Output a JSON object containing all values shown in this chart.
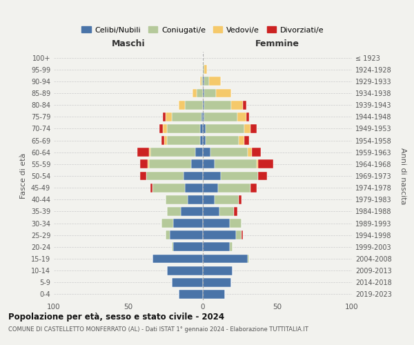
{
  "age_groups": [
    "0-4",
    "5-9",
    "10-14",
    "15-19",
    "20-24",
    "25-29",
    "30-34",
    "35-39",
    "40-44",
    "45-49",
    "50-54",
    "55-59",
    "60-64",
    "65-69",
    "70-74",
    "75-79",
    "80-84",
    "85-89",
    "90-94",
    "95-99",
    "100+"
  ],
  "birth_years": [
    "2019-2023",
    "2014-2018",
    "2009-2013",
    "2004-2008",
    "1999-2003",
    "1994-1998",
    "1989-1993",
    "1984-1988",
    "1979-1983",
    "1974-1978",
    "1969-1973",
    "1964-1968",
    "1959-1963",
    "1954-1958",
    "1949-1953",
    "1944-1948",
    "1939-1943",
    "1934-1938",
    "1929-1933",
    "1924-1928",
    "≤ 1923"
  ],
  "colors": {
    "celibi": "#4a74a8",
    "coniugati": "#b5c99a",
    "vedovi": "#f5c96a",
    "divorziati": "#cc2222"
  },
  "males": {
    "celibi": [
      16,
      21,
      24,
      34,
      20,
      22,
      20,
      15,
      10,
      12,
      13,
      8,
      5,
      2,
      2,
      1,
      0,
      0,
      0,
      0,
      0
    ],
    "coniugati": [
      0,
      0,
      0,
      0,
      1,
      3,
      8,
      9,
      15,
      22,
      25,
      28,
      30,
      22,
      22,
      20,
      12,
      4,
      1,
      0,
      0
    ],
    "vedovi": [
      0,
      0,
      0,
      0,
      0,
      0,
      0,
      0,
      0,
      0,
      0,
      1,
      1,
      2,
      3,
      4,
      4,
      3,
      1,
      0,
      0
    ],
    "divorziati": [
      0,
      0,
      0,
      0,
      0,
      0,
      0,
      0,
      0,
      1,
      4,
      5,
      8,
      2,
      2,
      2,
      0,
      0,
      0,
      0,
      0
    ]
  },
  "females": {
    "celibi": [
      15,
      19,
      20,
      30,
      18,
      22,
      18,
      11,
      8,
      10,
      12,
      8,
      5,
      2,
      2,
      1,
      1,
      1,
      1,
      0,
      0
    ],
    "coniugati": [
      0,
      0,
      0,
      1,
      2,
      4,
      8,
      10,
      16,
      22,
      25,
      28,
      25,
      22,
      26,
      22,
      18,
      8,
      3,
      1,
      0
    ],
    "vedovi": [
      0,
      0,
      0,
      0,
      0,
      0,
      0,
      0,
      0,
      0,
      0,
      1,
      3,
      4,
      4,
      6,
      8,
      10,
      8,
      2,
      0
    ],
    "divorziati": [
      0,
      0,
      0,
      0,
      0,
      1,
      0,
      2,
      2,
      4,
      6,
      10,
      6,
      3,
      4,
      2,
      2,
      0,
      0,
      0,
      0
    ]
  },
  "title": "Popolazione per età, sesso e stato civile - 2024",
  "subtitle": "COMUNE DI CASTELLETTO MONFERRATO (AL) - Dati ISTAT 1° gennaio 2024 - Elaborazione TUTTITALIA.IT",
  "xlabel_left": "Maschi",
  "xlabel_right": "Femmine",
  "ylabel_left": "Fasce di età",
  "ylabel_right": "Anni di nascita",
  "xlim": 100,
  "legend_labels": [
    "Celibi/Nubili",
    "Coniugati/e",
    "Vedovi/e",
    "Divorziati/e"
  ],
  "background_color": "#f2f2ee"
}
